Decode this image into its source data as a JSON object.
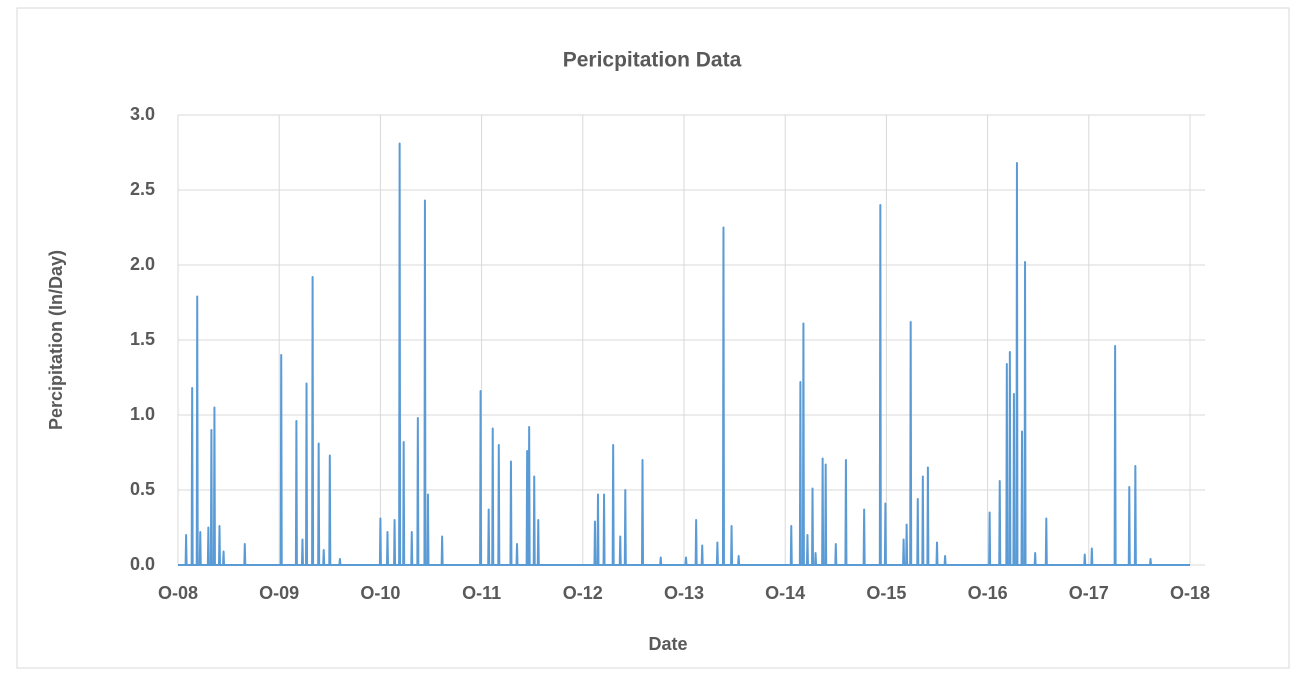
{
  "chart_data": {
    "type": "line",
    "title": "Pericpitation Data",
    "xlabel": "Date",
    "ylabel": "Percipitation (In/Day)",
    "xlim": [
      2008.75,
      2018.75
    ],
    "xticks": [
      {
        "value": 2008.75,
        "label": "O-08"
      },
      {
        "value": 2009.75,
        "label": "O-09"
      },
      {
        "value": 2010.75,
        "label": "O-10"
      },
      {
        "value": 2011.75,
        "label": "O-11"
      },
      {
        "value": 2012.75,
        "label": "O-12"
      },
      {
        "value": 2013.75,
        "label": "O-13"
      },
      {
        "value": 2014.75,
        "label": "O-14"
      },
      {
        "value": 2015.75,
        "label": "O-15"
      },
      {
        "value": 2016.75,
        "label": "O-16"
      },
      {
        "value": 2017.75,
        "label": "O-17"
      },
      {
        "value": 2018.75,
        "label": "O-18"
      }
    ],
    "ylim": [
      0,
      3
    ],
    "yticks": [
      {
        "value": 0,
        "label": "0.0"
      },
      0.5,
      {
        "value": 1,
        "label": "1.0"
      },
      1.5,
      {
        "value": 2,
        "label": "2.0"
      },
      2.5,
      {
        "value": 3,
        "label": "3.0"
      }
    ],
    "grid": true,
    "color": "#5b9bd5",
    "x": [
      2008.75,
      2008.825,
      2008.83,
      2008.835,
      2008.885,
      2008.89,
      2008.895,
      2008.935,
      2008.94,
      2008.945,
      2008.965,
      2008.97,
      2008.975,
      2009.045,
      2009.05,
      2009.055,
      2009.075,
      2009.08,
      2009.085,
      2009.105,
      2009.11,
      2009.115,
      2009.155,
      2009.16,
      2009.165,
      2009.195,
      2009.2,
      2009.205,
      2009.405,
      2009.41,
      2009.415,
      2009.765,
      2009.77,
      2009.775,
      2009.915,
      2009.92,
      2009.925,
      2009.975,
      2009.98,
      2009.985,
      2010.015,
      2010.02,
      2010.025,
      2010.075,
      2010.08,
      2010.085,
      2010.135,
      2010.14,
      2010.145,
      2010.185,
      2010.19,
      2010.195,
      2010.245,
      2010.25,
      2010.255,
      2010.345,
      2010.35,
      2010.355,
      2010.745,
      2010.75,
      2010.755,
      2010.815,
      2010.82,
      2010.825,
      2010.885,
      2010.89,
      2010.895,
      2010.935,
      2010.94,
      2010.945,
      2010.975,
      2010.98,
      2010.985,
      2011.055,
      2011.06,
      2011.065,
      2011.115,
      2011.12,
      2011.125,
      2011.185,
      2011.19,
      2011.195,
      2011.215,
      2011.22,
      2011.225,
      2011.355,
      2011.36,
      2011.365,
      2011.735,
      2011.74,
      2011.745,
      2011.815,
      2011.82,
      2011.825,
      2011.855,
      2011.86,
      2011.865,
      2011.915,
      2011.92,
      2011.925,
      2012.035,
      2012.04,
      2012.045,
      2012.095,
      2012.1,
      2012.105,
      2012.195,
      2012.2,
      2012.205,
      2012.215,
      2012.22,
      2012.225,
      2012.265,
      2012.27,
      2012.275,
      2012.305,
      2012.31,
      2012.315,
      2012.865,
      2012.87,
      2012.875,
      2012.895,
      2012.9,
      2012.905,
      2012.955,
      2012.96,
      2012.965,
      2013.045,
      2013.05,
      2013.055,
      2013.115,
      2013.12,
      2013.125,
      2013.165,
      2013.17,
      2013.175,
      2013.335,
      2013.34,
      2013.345,
      2013.515,
      2013.52,
      2013.525,
      2013.765,
      2013.77,
      2013.775,
      2013.865,
      2013.87,
      2013.875,
      2013.925,
      2013.93,
      2013.935,
      2014.075,
      2014.08,
      2014.085,
      2014.135,
      2014.14,
      2014.145,
      2014.215,
      2014.22,
      2014.225,
      2014.285,
      2014.29,
      2014.295,
      2014.805,
      2014.81,
      2014.815,
      2014.895,
      2014.9,
      2014.905,
      2014.925,
      2014.93,
      2014.935,
      2014.965,
      2014.97,
      2014.975,
      2015.015,
      2015.02,
      2015.025,
      2015.045,
      2015.05,
      2015.055,
      2015.115,
      2015.12,
      2015.125,
      2015.145,
      2015.15,
      2015.155,
      2015.245,
      2015.25,
      2015.255,
      2015.345,
      2015.35,
      2015.355,
      2015.525,
      2015.53,
      2015.535,
      2015.685,
      2015.69,
      2015.695,
      2015.735,
      2015.74,
      2015.745,
      2015.915,
      2015.92,
      2015.925,
      2015.945,
      2015.95,
      2015.955,
      2015.985,
      2015.99,
      2015.995,
      2016.055,
      2016.06,
      2016.065,
      2016.105,
      2016.11,
      2016.115,
      2016.155,
      2016.16,
      2016.165,
      2016.245,
      2016.25,
      2016.255,
      2016.325,
      2016.33,
      2016.335,
      2016.765,
      2016.77,
      2016.775,
      2016.865,
      2016.87,
      2016.875,
      2016.935,
      2016.94,
      2016.945,
      2016.965,
      2016.97,
      2016.975,
      2017.005,
      2017.01,
      2017.015,
      2017.035,
      2017.04,
      2017.045,
      2017.085,
      2017.09,
      2017.095,
      2017.115,
      2017.12,
      2017.125,
      2017.215,
      2017.22,
      2017.225,
      2017.325,
      2017.33,
      2017.335,
      2017.705,
      2017.71,
      2017.715,
      2017.775,
      2017.78,
      2017.785,
      2018.005,
      2018.01,
      2018.015,
      2018.145,
      2018.15,
      2018.155,
      2018.205,
      2018.21,
      2018.215,
      2018.355,
      2018.36,
      2018.365,
      2018.75
    ],
    "values": [
      0,
      0,
      0.2,
      0,
      0,
      1.18,
      0,
      0,
      1.79,
      0,
      0,
      0.22,
      0,
      0,
      0.25,
      0,
      0,
      0.9,
      0,
      0,
      1.05,
      0,
      0,
      0.26,
      0,
      0,
      0.09,
      0,
      0,
      0.14,
      0,
      0,
      1.4,
      0,
      0,
      0.96,
      0,
      0,
      0.17,
      0,
      0,
      1.21,
      0,
      0,
      1.92,
      0,
      0,
      0.81,
      0,
      0,
      0.1,
      0,
      0,
      0.73,
      0,
      0,
      0.04,
      0,
      0,
      0.31,
      0,
      0,
      0.22,
      0,
      0,
      0.3,
      0,
      0,
      2.81,
      0,
      0,
      0.82,
      0,
      0,
      0.22,
      0,
      0,
      0.98,
      0,
      0,
      2.43,
      0,
      0,
      0.47,
      0,
      0,
      0.19,
      0,
      0,
      1.16,
      0,
      0,
      0.37,
      0,
      0,
      0.91,
      0,
      0,
      0.8,
      0,
      0,
      0.69,
      0,
      0,
      0.14,
      0,
      0,
      0.76,
      0,
      0,
      0.92,
      0,
      0,
      0.59,
      0,
      0,
      0.3,
      0,
      0,
      0.29,
      0,
      0,
      0.47,
      0,
      0,
      0.47,
      0,
      0,
      0.8,
      0,
      0,
      0.19,
      0,
      0,
      0.5,
      0,
      0,
      0.7,
      0,
      0,
      0.05,
      0,
      0,
      0.05,
      0,
      0,
      0.3,
      0,
      0,
      0.13,
      0,
      0,
      0.15,
      0,
      0,
      2.25,
      0,
      0,
      0.26,
      0,
      0,
      0.06,
      0,
      0,
      0.26,
      0,
      0,
      1.22,
      0,
      0,
      1.61,
      0,
      0,
      0.2,
      0,
      0,
      0.51,
      0,
      0,
      0.08,
      0,
      0,
      0.71,
      0,
      0,
      0.67,
      0,
      0,
      0.14,
      0,
      0,
      0.7,
      0,
      0,
      0.37,
      0,
      0,
      2.4,
      0,
      0,
      0.41,
      0,
      0,
      0.17,
      0,
      0,
      0.27,
      0,
      0,
      1.62,
      0,
      0,
      0.44,
      0,
      0,
      0.59,
      0,
      0,
      0.65,
      0,
      0,
      0.15,
      0,
      0,
      0.06,
      0,
      0,
      0.35,
      0,
      0,
      0.56,
      0,
      0,
      1.34,
      0,
      0,
      1.42,
      0,
      0,
      1.14,
      0,
      0,
      2.68,
      0,
      0,
      0.89,
      0,
      0,
      2.02,
      0,
      0,
      0.08,
      0,
      0,
      0.31,
      0,
      0,
      0.07,
      0,
      0,
      0.11,
      0,
      0,
      1.46,
      0,
      0,
      0.52,
      0,
      0,
      0.66,
      0,
      0,
      0.04,
      0,
      0
    ]
  }
}
